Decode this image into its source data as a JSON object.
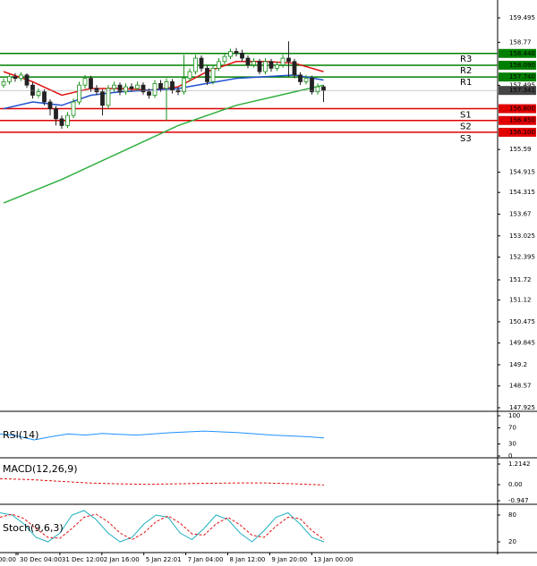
{
  "chart_data": {
    "type": "candlestick",
    "ylim": [
      147.925,
      159.495
    ],
    "yticks": [
      159.495,
      158.77,
      157.495,
      155.59,
      154.915,
      154.315,
      153.67,
      153.025,
      152.395,
      151.72,
      151.12,
      150.475,
      149.845,
      149.2,
      148.57,
      147.925
    ],
    "up_color": "#1a8f1a",
    "down_color": "#222222",
    "candles": {
      "open": [
        157.5,
        157.6,
        157.75,
        157.7,
        157.8,
        157.5,
        157.2,
        157.3,
        157.0,
        156.8,
        156.5,
        156.3,
        156.6,
        157.0,
        157.5,
        157.7,
        157.4,
        157.3,
        156.9,
        157.4,
        157.5,
        157.3,
        157.45,
        157.4,
        157.5,
        157.3,
        157.2,
        157.55,
        157.4,
        157.6,
        157.35,
        157.3,
        157.7,
        157.9,
        158.3,
        158.0,
        157.6,
        158.0,
        158.2,
        158.35,
        158.5,
        158.45,
        158.3,
        158.1,
        158.2,
        157.9,
        158.2,
        158.0,
        158.1,
        158.3,
        158.2,
        157.8,
        157.6,
        157.7,
        157.3,
        157.45
      ],
      "high": [
        157.7,
        157.82,
        157.85,
        157.88,
        157.85,
        157.58,
        157.4,
        157.38,
        157.08,
        156.88,
        156.6,
        156.7,
        157.1,
        157.6,
        157.8,
        157.78,
        157.5,
        157.38,
        157.5,
        157.6,
        157.58,
        157.55,
        157.55,
        157.6,
        157.58,
        157.4,
        157.65,
        157.65,
        157.7,
        157.68,
        157.45,
        158.4,
        158.0,
        158.4,
        158.38,
        158.08,
        158.1,
        158.3,
        158.45,
        158.58,
        158.6,
        158.55,
        158.38,
        158.3,
        158.28,
        158.3,
        158.28,
        158.2,
        158.4,
        158.8,
        158.28,
        157.88,
        157.8,
        157.78,
        157.55,
        157.5
      ],
      "low": [
        157.42,
        157.52,
        157.6,
        157.62,
        157.42,
        157.1,
        157.12,
        156.9,
        156.6,
        156.3,
        156.2,
        156.22,
        156.52,
        156.92,
        157.4,
        157.3,
        157.2,
        156.6,
        156.8,
        157.3,
        157.2,
        157.22,
        157.3,
        157.32,
        157.22,
        157.1,
        157.12,
        157.3,
        156.45,
        157.25,
        157.2,
        157.22,
        157.6,
        157.82,
        157.9,
        157.5,
        157.52,
        157.92,
        158.12,
        158.27,
        158.35,
        158.2,
        158.0,
        158.02,
        157.82,
        157.82,
        157.9,
        157.92,
        158.02,
        157.75,
        157.7,
        157.5,
        157.52,
        157.22,
        157.22,
        157.0
      ],
      "close": [
        157.6,
        157.75,
        157.7,
        157.8,
        157.5,
        157.2,
        157.3,
        157.0,
        156.8,
        156.5,
        156.3,
        156.6,
        157.0,
        157.5,
        157.7,
        157.4,
        157.3,
        156.9,
        157.4,
        157.5,
        157.3,
        157.45,
        157.4,
        157.5,
        157.3,
        157.2,
        157.55,
        157.4,
        157.6,
        157.35,
        157.3,
        157.7,
        157.9,
        158.3,
        158.0,
        157.6,
        158.0,
        158.2,
        158.35,
        158.5,
        158.45,
        158.3,
        158.1,
        158.2,
        157.9,
        158.2,
        158.0,
        158.1,
        158.3,
        158.2,
        157.8,
        157.6,
        157.7,
        157.3,
        157.45,
        157.34
      ]
    },
    "moving_averages": [
      {
        "color": "#e01010",
        "x": [
          0,
          5,
          10,
          15,
          20,
          25,
          30,
          35,
          40,
          45,
          50,
          55
        ],
        "values": [
          157.9,
          157.6,
          157.2,
          157.4,
          157.4,
          157.35,
          157.45,
          157.9,
          158.2,
          158.2,
          158.15,
          157.9
        ]
      },
      {
        "color": "#2050d0",
        "x": [
          0,
          5,
          10,
          15,
          20,
          25,
          30,
          35,
          40,
          45,
          50,
          55
        ],
        "values": [
          156.8,
          157.0,
          156.9,
          157.2,
          157.3,
          157.35,
          157.4,
          157.55,
          157.7,
          157.75,
          157.8,
          157.65
        ]
      },
      {
        "color": "#30b040",
        "x": [
          0,
          10,
          20,
          30,
          40,
          50,
          55
        ],
        "values": [
          154.0,
          154.7,
          155.5,
          156.3,
          156.9,
          157.3,
          157.5
        ]
      }
    ],
    "last_price": {
      "value": 157.341,
      "label": "157.341"
    },
    "levels": [
      {
        "name": "R3",
        "value": 158.44,
        "label": "158.440",
        "color": "#008000"
      },
      {
        "name": "R2",
        "value": 158.09,
        "label": "158.090",
        "color": "#008000"
      },
      {
        "name": "R1",
        "value": 157.74,
        "label": "157.740",
        "color": "#008000"
      },
      {
        "name": "S1",
        "value": 156.8,
        "label": "156.800",
        "color": "#e00000"
      },
      {
        "name": "S2",
        "value": 156.45,
        "label": "156.450",
        "color": "#e00000"
      },
      {
        "name": "S3",
        "value": 156.1,
        "label": "156.100",
        "color": "#e00000"
      }
    ],
    "x_labels": [
      "00:00",
      "30 Dec 04:00",
      "31 Dec 12:00",
      "2 Jan 16:00",
      "5 Jan 22:01",
      "7 Jan 04:00",
      "8 Jan 12:00",
      "9 Jan 20:00",
      "13 Jan 00:00"
    ],
    "indicators": [
      {
        "title": "RSI(14)",
        "ylim": [
          0,
          100
        ],
        "yticks": [
          100,
          70,
          30,
          0
        ],
        "series": [
          {
            "color": "#1e90ff",
            "dash": false,
            "values": [
              55,
              50,
              40,
              48,
              55,
              52,
              56,
              54,
              52,
              55,
              58,
              60,
              62,
              60,
              58,
              55,
              52,
              50,
              48,
              45
            ]
          }
        ]
      },
      {
        "title": "MACD(12,26,9)",
        "ylim": [
          -0.947,
          1.2142
        ],
        "yticks": [
          1.2142,
          {
            "value": 0,
            "label": "0.00"
          },
          -0.947
        ],
        "series": [
          {
            "color": "#e01010",
            "dash": true,
            "values": [
              0.35,
              0.3,
              0.2,
              0.1,
              0.05,
              0.02,
              0.05,
              0.08,
              0.1,
              0.1,
              0.05,
              -0.02
            ]
          }
        ]
      },
      {
        "title": "Stoch(9,6,3)",
        "ylim": [
          0,
          100
        ],
        "yticks": [
          80,
          20
        ],
        "series": [
          {
            "color": "#20b0c0",
            "dash": false,
            "values": [
              85,
              80,
              60,
              30,
              20,
              40,
              80,
              90,
              70,
              40,
              20,
              30,
              60,
              80,
              75,
              40,
              25,
              50,
              80,
              70,
              40,
              20,
              45,
              75,
              85,
              60,
              30,
              20
            ]
          },
          {
            "color": "#e01010",
            "dash": true,
            "values": [
              75,
              82,
              72,
              50,
              30,
              28,
              50,
              75,
              82,
              65,
              40,
              25,
              40,
              65,
              78,
              62,
              38,
              35,
              60,
              75,
              58,
              35,
              30,
              55,
              75,
              72,
              45,
              25
            ]
          }
        ]
      }
    ]
  }
}
